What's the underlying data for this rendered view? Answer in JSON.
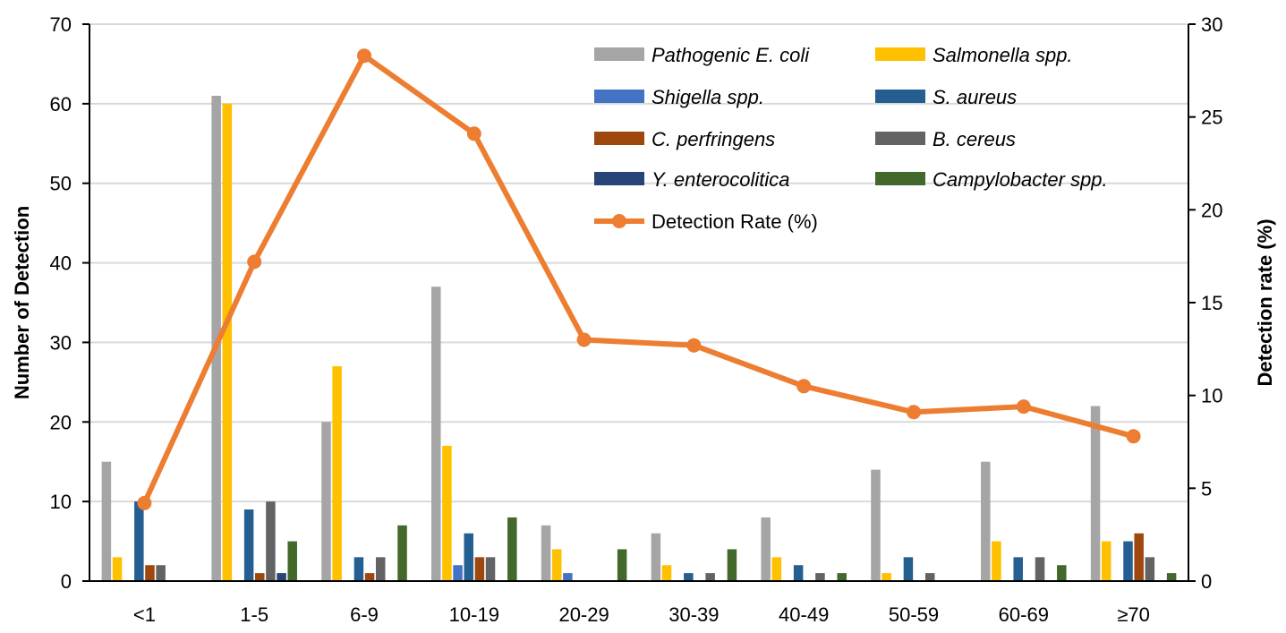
{
  "chart_data": {
    "type": "bar",
    "categories": [
      "<1",
      "1-5",
      "6-9",
      "10-19",
      "20-29",
      "30-39",
      "40-49",
      "50-59",
      "60-69",
      "≥70"
    ],
    "ylabel": "Number of Detection",
    "y2label": "Detection rate (%)",
    "ylim": [
      0,
      70
    ],
    "y2lim": [
      0,
      30
    ],
    "yticks": [
      "0",
      "10",
      "20",
      "30",
      "40",
      "50",
      "60",
      "70"
    ],
    "y2ticks": [
      "0",
      "5",
      "10",
      "15",
      "20",
      "25",
      "30"
    ],
    "grid": true,
    "legend_position": "top-right",
    "series": [
      {
        "name": "Pathogenic E. coli",
        "color": "#a5a5a5",
        "values": [
          15,
          61,
          20,
          37,
          7,
          6,
          8,
          14,
          15,
          22
        ]
      },
      {
        "name": "Salmonella spp.",
        "color": "#ffc000",
        "values": [
          3,
          60,
          27,
          17,
          4,
          2,
          3,
          1,
          5,
          5
        ]
      },
      {
        "name": "Shigella spp.",
        "color": "#4472c4",
        "values": [
          0,
          0,
          0,
          2,
          1,
          0,
          0,
          0,
          0,
          0
        ]
      },
      {
        "name": "S. aureus",
        "color": "#255e91",
        "values": [
          10,
          9,
          3,
          6,
          0,
          1,
          2,
          3,
          3,
          5
        ]
      },
      {
        "name": "C. perfringens",
        "color": "#9e480e",
        "values": [
          2,
          1,
          1,
          3,
          0,
          0,
          0,
          0,
          0,
          6
        ]
      },
      {
        "name": "B. cereus",
        "color": "#636363",
        "values": [
          2,
          10,
          3,
          3,
          0,
          1,
          1,
          1,
          3,
          3
        ]
      },
      {
        "name": "Y. enterocolitica",
        "color": "#264478",
        "values": [
          0,
          1,
          0,
          0,
          0,
          0,
          0,
          0,
          0,
          0
        ]
      },
      {
        "name": "Campylobacter spp.",
        "color": "#43682b",
        "values": [
          0,
          5,
          7,
          8,
          4,
          4,
          1,
          0,
          2,
          1
        ]
      }
    ],
    "line_series": {
      "name": "Detection Rate (%)",
      "color": "#ed7d31",
      "axis": "right",
      "values": [
        4.2,
        17.2,
        28.3,
        24.1,
        13.0,
        12.7,
        10.5,
        9.1,
        9.4,
        7.8
      ]
    }
  }
}
